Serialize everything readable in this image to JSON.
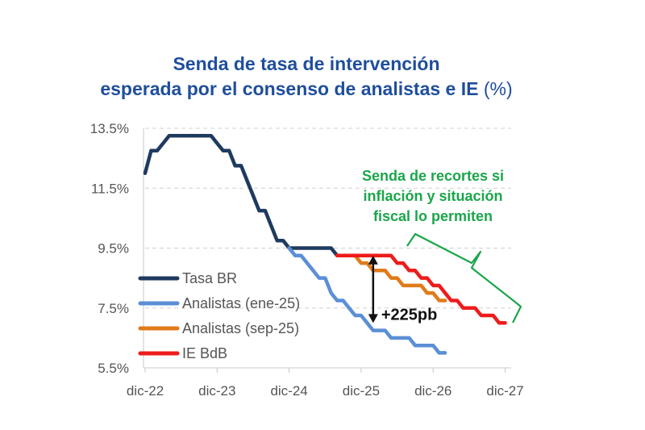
{
  "title": {
    "line1": "Senda de tasa de intervención",
    "line2": "esperada por el consenso de analistas e IE",
    "unit": "(%)"
  },
  "colors": {
    "tasa_br": "#1f3a5f",
    "ene25": "#5b8fd6",
    "sep25": "#e07b1a",
    "ie_bdb": "#ee1c1c",
    "annotation": "#1aa64a",
    "grid": "#d0d0d0",
    "axis": "#c8c8c8"
  },
  "chart_data": {
    "type": "line",
    "title": "Senda de tasa de intervención esperada por el consenso de analistas e IE (%)",
    "xlabel": "",
    "ylabel": "",
    "x_unit": "months since dic-22",
    "xlim": [
      0,
      61
    ],
    "ylim": [
      5.5,
      13.5
    ],
    "yticks": [
      13.5,
      11.5,
      9.5,
      7.5,
      5.5
    ],
    "ytick_labels": [
      "13.5%",
      "11.5%",
      "9.5%",
      "7.5%",
      "5.5%"
    ],
    "xticks": [
      0,
      12,
      24,
      36,
      48,
      60
    ],
    "xtick_labels": [
      "dic-22",
      "dic-23",
      "dic-24",
      "dic-25",
      "dic-26",
      "dic-27"
    ],
    "grid": true,
    "legend_position": "lower-left",
    "series": [
      {
        "name": "Tasa BR",
        "color": "#1f3a5f",
        "points": [
          [
            0,
            12.0
          ],
          [
            1,
            12.75
          ],
          [
            2,
            12.75
          ],
          [
            3,
            13.0
          ],
          [
            4,
            13.25
          ],
          [
            5,
            13.25
          ],
          [
            6,
            13.25
          ],
          [
            7,
            13.25
          ],
          [
            8,
            13.25
          ],
          [
            9,
            13.25
          ],
          [
            10,
            13.25
          ],
          [
            11,
            13.25
          ],
          [
            12,
            13.0
          ],
          [
            13,
            12.75
          ],
          [
            14,
            12.75
          ],
          [
            15,
            12.25
          ],
          [
            16,
            12.25
          ],
          [
            17,
            11.75
          ],
          [
            18,
            11.25
          ],
          [
            19,
            10.75
          ],
          [
            20,
            10.75
          ],
          [
            21,
            10.25
          ],
          [
            22,
            9.75
          ],
          [
            23,
            9.75
          ],
          [
            24,
            9.5
          ],
          [
            25,
            9.5
          ],
          [
            26,
            9.5
          ],
          [
            27,
            9.5
          ],
          [
            28,
            9.5
          ],
          [
            29,
            9.5
          ],
          [
            30,
            9.5
          ],
          [
            31,
            9.5
          ],
          [
            32,
            9.25
          ]
        ]
      },
      {
        "name": "Analistas (ene-25)",
        "color": "#5b8fd6",
        "points": [
          [
            24,
            9.5
          ],
          [
            25,
            9.25
          ],
          [
            26,
            9.25
          ],
          [
            27,
            9.0
          ],
          [
            28,
            8.75
          ],
          [
            29,
            8.5
          ],
          [
            30,
            8.5
          ],
          [
            31,
            8.0
          ],
          [
            32,
            7.75
          ],
          [
            33,
            7.75
          ],
          [
            34,
            7.5
          ],
          [
            35,
            7.25
          ],
          [
            36,
            7.25
          ],
          [
            37,
            7.0
          ],
          [
            38,
            6.75
          ],
          [
            39,
            6.75
          ],
          [
            40,
            6.75
          ],
          [
            41,
            6.5
          ],
          [
            42,
            6.5
          ],
          [
            43,
            6.5
          ],
          [
            44,
            6.5
          ],
          [
            45,
            6.25
          ],
          [
            46,
            6.25
          ],
          [
            47,
            6.25
          ],
          [
            48,
            6.25
          ],
          [
            49,
            6.0
          ],
          [
            50,
            6.0
          ]
        ]
      },
      {
        "name": "Analistas (sep-25)",
        "color": "#e07b1a",
        "points": [
          [
            32,
            9.25
          ],
          [
            33,
            9.25
          ],
          [
            34,
            9.25
          ],
          [
            35,
            9.25
          ],
          [
            36,
            9.0
          ],
          [
            37,
            9.0
          ],
          [
            38,
            8.75
          ],
          [
            39,
            8.75
          ],
          [
            40,
            8.75
          ],
          [
            41,
            8.5
          ],
          [
            42,
            8.5
          ],
          [
            43,
            8.25
          ],
          [
            44,
            8.25
          ],
          [
            45,
            8.25
          ],
          [
            46,
            8.25
          ],
          [
            47,
            8.0
          ],
          [
            48,
            8.0
          ],
          [
            49,
            7.75
          ],
          [
            50,
            7.75
          ]
        ]
      },
      {
        "name": "IE BdB",
        "color": "#ee1c1c",
        "points": [
          [
            32,
            9.25
          ],
          [
            33,
            9.25
          ],
          [
            34,
            9.25
          ],
          [
            35,
            9.25
          ],
          [
            36,
            9.25
          ],
          [
            37,
            9.25
          ],
          [
            38,
            9.25
          ],
          [
            39,
            9.25
          ],
          [
            40,
            9.25
          ],
          [
            41,
            9.25
          ],
          [
            42,
            9.0
          ],
          [
            43,
            9.0
          ],
          [
            44,
            8.75
          ],
          [
            45,
            8.75
          ],
          [
            46,
            8.5
          ],
          [
            47,
            8.5
          ],
          [
            48,
            8.25
          ],
          [
            49,
            8.25
          ],
          [
            50,
            8.0
          ],
          [
            51,
            7.75
          ],
          [
            52,
            7.75
          ],
          [
            53,
            7.5
          ],
          [
            54,
            7.5
          ],
          [
            55,
            7.5
          ],
          [
            56,
            7.25
          ],
          [
            57,
            7.25
          ],
          [
            58,
            7.25
          ],
          [
            59,
            7.0
          ],
          [
            60,
            7.0
          ]
        ]
      }
    ],
    "annotations": {
      "cuts_text": [
        "Senda de recortes si",
        "inflación y situación",
        "fiscal lo permiten"
      ],
      "spread_label": "+225pb",
      "spread_x": 38,
      "spread_from": 9.25,
      "spread_to": 7.0
    }
  }
}
